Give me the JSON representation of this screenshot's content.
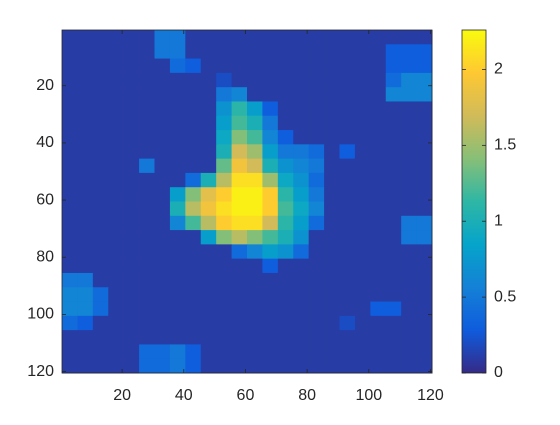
{
  "chart_data": {
    "type": "heatmap",
    "xlim": [
      0.5,
      120.5
    ],
    "ylim": [
      0.5,
      120.5
    ],
    "y_reversed": true,
    "xticks": [
      20,
      40,
      60,
      80,
      100,
      120
    ],
    "yticks": [
      20,
      40,
      60,
      80,
      100,
      120
    ],
    "cell_size": 5,
    "clim": [
      0,
      2.26
    ],
    "cticks": [
      0,
      0.5,
      1,
      1.5,
      2
    ],
    "colormap": [
      "#352a87",
      "#0f5cdd",
      "#1481d6",
      "#06a4ca",
      "#2eb7a4",
      "#87bf77",
      "#d1bb59",
      "#fec832",
      "#f9fb0e"
    ],
    "z": [
      [
        0.1,
        0.1,
        0.1,
        0.1,
        0.1,
        0.1,
        0.5,
        0.5,
        0.1,
        0.1,
        0.1,
        0.1,
        0.1,
        0.1,
        0.1,
        0.1,
        0.1,
        0.1,
        0.1,
        0.1,
        0.1,
        0.1,
        0.1,
        0.1
      ],
      [
        0.1,
        0.1,
        0.1,
        0.1,
        0.1,
        0.1,
        0.5,
        0.5,
        0.1,
        0.1,
        0.1,
        0.1,
        0.1,
        0.1,
        0.1,
        0.1,
        0.1,
        0.1,
        0.1,
        0.1,
        0.1,
        0.3,
        0.3,
        0.3
      ],
      [
        0.1,
        0.1,
        0.1,
        0.1,
        0.1,
        0.1,
        0.1,
        0.4,
        0.3,
        0.1,
        0.1,
        0.1,
        0.1,
        0.1,
        0.1,
        0.1,
        0.1,
        0.1,
        0.1,
        0.1,
        0.1,
        0.3,
        0.3,
        0.3
      ],
      [
        0.1,
        0.1,
        0.1,
        0.1,
        0.1,
        0.1,
        0.1,
        0.1,
        0.1,
        0.1,
        0.2,
        0.1,
        0.1,
        0.1,
        0.1,
        0.1,
        0.1,
        0.1,
        0.1,
        0.1,
        0.1,
        0.4,
        0.6,
        0.6
      ],
      [
        0.1,
        0.1,
        0.1,
        0.1,
        0.1,
        0.1,
        0.1,
        0.1,
        0.1,
        0.1,
        0.5,
        0.6,
        0.1,
        0.1,
        0.1,
        0.1,
        0.1,
        0.1,
        0.1,
        0.1,
        0.1,
        0.6,
        0.6,
        0.6
      ],
      [
        0.1,
        0.1,
        0.1,
        0.1,
        0.1,
        0.1,
        0.1,
        0.1,
        0.1,
        0.1,
        0.7,
        1.1,
        0.8,
        0.3,
        0.1,
        0.1,
        0.1,
        0.1,
        0.1,
        0.1,
        0.1,
        0.1,
        0.1,
        0.1
      ],
      [
        0.1,
        0.1,
        0.1,
        0.1,
        0.1,
        0.1,
        0.1,
        0.1,
        0.1,
        0.1,
        0.8,
        1.2,
        1.0,
        0.5,
        0.1,
        0.1,
        0.1,
        0.1,
        0.1,
        0.1,
        0.1,
        0.1,
        0.1,
        0.1
      ],
      [
        0.1,
        0.1,
        0.1,
        0.1,
        0.1,
        0.1,
        0.1,
        0.1,
        0.1,
        0.1,
        0.9,
        1.4,
        1.2,
        0.6,
        0.3,
        0.1,
        0.1,
        0.1,
        0.1,
        0.1,
        0.1,
        0.1,
        0.1,
        0.1
      ],
      [
        0.1,
        0.1,
        0.1,
        0.1,
        0.1,
        0.1,
        0.1,
        0.1,
        0.1,
        0.1,
        1.0,
        1.7,
        1.5,
        0.8,
        0.5,
        0.5,
        0.4,
        0.1,
        0.3,
        0.1,
        0.1,
        0.1,
        0.1,
        0.1
      ],
      [
        0.1,
        0.1,
        0.1,
        0.1,
        0.1,
        0.5,
        0.1,
        0.1,
        0.1,
        0.1,
        1.3,
        1.9,
        1.7,
        1.0,
        0.7,
        0.6,
        0.5,
        0.1,
        0.1,
        0.1,
        0.1,
        0.1,
        0.1,
        0.1
      ],
      [
        0.1,
        0.1,
        0.1,
        0.1,
        0.1,
        0.1,
        0.1,
        0.1,
        0.4,
        1.0,
        1.6,
        2.1,
        2.1,
        1.5,
        0.9,
        0.7,
        0.4,
        0.1,
        0.1,
        0.1,
        0.1,
        0.1,
        0.1,
        0.1
      ],
      [
        0.1,
        0.1,
        0.1,
        0.1,
        0.1,
        0.1,
        0.1,
        0.8,
        1.4,
        1.8,
        2.0,
        2.2,
        2.2,
        2.0,
        1.1,
        0.8,
        0.5,
        0.1,
        0.1,
        0.1,
        0.1,
        0.1,
        0.1,
        0.1
      ],
      [
        0.1,
        0.1,
        0.1,
        0.1,
        0.1,
        0.1,
        0.1,
        1.0,
        1.6,
        1.9,
        2.1,
        2.2,
        2.2,
        2.0,
        1.2,
        0.9,
        0.6,
        0.1,
        0.1,
        0.1,
        0.1,
        0.1,
        0.1,
        0.1
      ],
      [
        0.1,
        0.1,
        0.1,
        0.1,
        0.1,
        0.1,
        0.1,
        0.6,
        1.2,
        1.6,
        2.0,
        2.1,
        2.1,
        1.7,
        1.1,
        0.8,
        0.4,
        0.1,
        0.1,
        0.1,
        0.1,
        0.1,
        0.5,
        0.5
      ],
      [
        0.1,
        0.1,
        0.1,
        0.1,
        0.1,
        0.1,
        0.1,
        0.1,
        0.1,
        0.8,
        1.4,
        1.6,
        1.4,
        1.2,
        1.0,
        0.7,
        0.1,
        0.1,
        0.1,
        0.1,
        0.1,
        0.1,
        0.5,
        0.5
      ],
      [
        0.1,
        0.1,
        0.1,
        0.1,
        0.1,
        0.1,
        0.1,
        0.1,
        0.1,
        0.1,
        0.1,
        0.4,
        0.6,
        0.8,
        0.7,
        0.4,
        0.1,
        0.1,
        0.1,
        0.1,
        0.1,
        0.1,
        0.1,
        0.1
      ],
      [
        0.1,
        0.1,
        0.1,
        0.1,
        0.1,
        0.1,
        0.1,
        0.1,
        0.1,
        0.1,
        0.1,
        0.1,
        0.1,
        0.3,
        0.1,
        0.1,
        0.1,
        0.1,
        0.1,
        0.1,
        0.1,
        0.1,
        0.1,
        0.1
      ],
      [
        0.5,
        0.5,
        0.1,
        0.1,
        0.1,
        0.1,
        0.1,
        0.1,
        0.1,
        0.1,
        0.1,
        0.1,
        0.1,
        0.1,
        0.1,
        0.1,
        0.1,
        0.1,
        0.1,
        0.1,
        0.1,
        0.1,
        0.1,
        0.1
      ],
      [
        0.6,
        0.6,
        0.4,
        0.1,
        0.1,
        0.1,
        0.1,
        0.1,
        0.1,
        0.1,
        0.1,
        0.1,
        0.1,
        0.1,
        0.1,
        0.1,
        0.1,
        0.1,
        0.1,
        0.1,
        0.1,
        0.1,
        0.1,
        0.1
      ],
      [
        0.6,
        0.6,
        0.4,
        0.1,
        0.1,
        0.1,
        0.1,
        0.1,
        0.1,
        0.1,
        0.1,
        0.1,
        0.1,
        0.1,
        0.1,
        0.1,
        0.1,
        0.1,
        0.1,
        0.1,
        0.3,
        0.3,
        0.1,
        0.1
      ],
      [
        0.4,
        0.3,
        0.1,
        0.1,
        0.1,
        0.1,
        0.1,
        0.1,
        0.1,
        0.1,
        0.1,
        0.1,
        0.1,
        0.1,
        0.1,
        0.1,
        0.1,
        0.1,
        0.2,
        0.1,
        0.1,
        0.1,
        0.1,
        0.1
      ],
      [
        0.1,
        0.1,
        0.1,
        0.1,
        0.1,
        0.1,
        0.1,
        0.1,
        0.1,
        0.1,
        0.1,
        0.1,
        0.1,
        0.1,
        0.1,
        0.1,
        0.1,
        0.1,
        0.1,
        0.1,
        0.1,
        0.1,
        0.1,
        0.1
      ],
      [
        0.1,
        0.1,
        0.1,
        0.1,
        0.1,
        0.4,
        0.4,
        0.5,
        0.3,
        0.1,
        0.1,
        0.1,
        0.1,
        0.1,
        0.1,
        0.1,
        0.1,
        0.1,
        0.1,
        0.1,
        0.1,
        0.1,
        0.1,
        0.1
      ],
      [
        0.1,
        0.1,
        0.1,
        0.1,
        0.1,
        0.4,
        0.4,
        0.5,
        0.3,
        0.1,
        0.1,
        0.1,
        0.1,
        0.1,
        0.1,
        0.1,
        0.1,
        0.1,
        0.1,
        0.1,
        0.1,
        0.1,
        0.1,
        0.1
      ]
    ]
  }
}
